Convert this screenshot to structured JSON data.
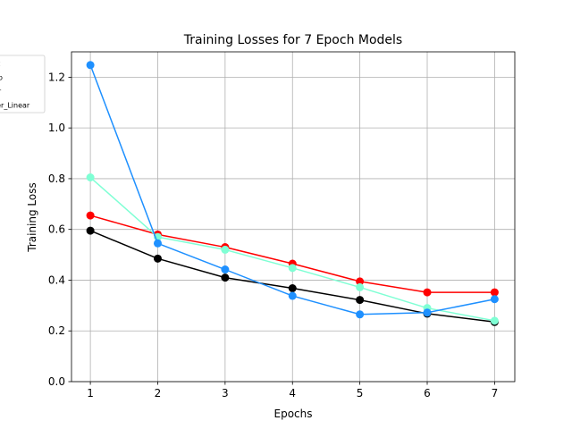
{
  "chart_data": {
    "type": "line",
    "title": "Training Losses for 7 Epoch Models",
    "xlabel": "Epochs",
    "ylabel": "Training Loss",
    "x": [
      1,
      2,
      3,
      4,
      5,
      6,
      7
    ],
    "xticks": [
      "1",
      "2",
      "3",
      "4",
      "5",
      "6",
      "7"
    ],
    "yticks": [
      "0.0",
      "0.2",
      "0.4",
      "0.6",
      "0.8",
      "1.0",
      "1.2"
    ],
    "ylim": [
      0,
      1.3
    ],
    "xlim": [
      0.72,
      7.3
    ],
    "grid": true,
    "legend_location": "upper-left",
    "series": [
      {
        "legend_text": "st",
        "color": "#ff0000",
        "values": [
          0.655,
          0.58,
          0.53,
          0.465,
          0.395,
          0.352,
          0.352
        ]
      },
      {
        "legend_text": "ep",
        "color": "#000000",
        "values": [
          0.595,
          0.485,
          0.41,
          0.368,
          0.322,
          0.268,
          0.235
        ]
      },
      {
        "legend_text": "er",
        "color": "#7fffd4",
        "values": [
          0.805,
          0.57,
          0.52,
          0.448,
          0.372,
          0.29,
          0.24
        ]
      },
      {
        "legend_text": "rer_Linear",
        "color": "#1e90ff",
        "values": [
          1.248,
          0.545,
          0.442,
          0.338,
          0.265,
          0.272,
          0.325
        ]
      }
    ]
  }
}
